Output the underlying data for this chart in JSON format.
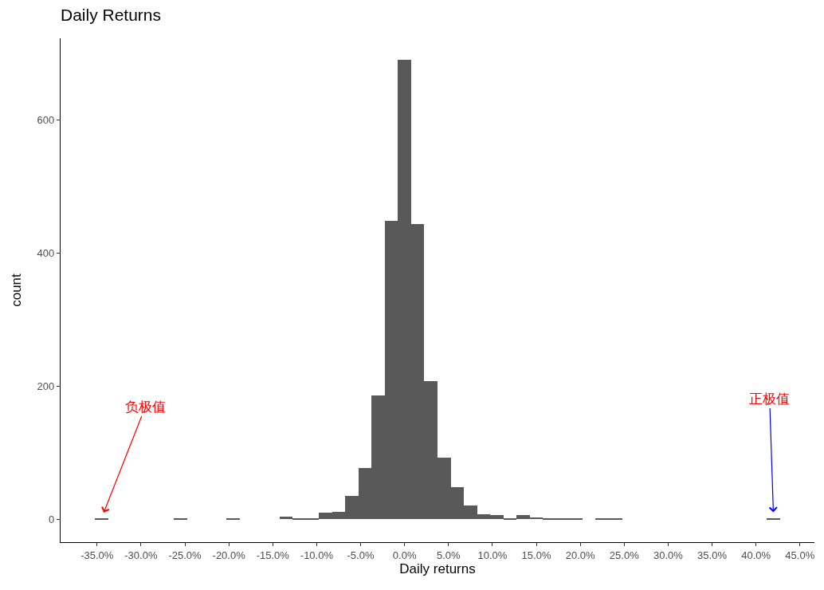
{
  "chart_data": {
    "type": "histogram",
    "title": "Daily Returns",
    "xlabel": "Daily returns",
    "ylabel": "count",
    "color": "#595959",
    "bins": [
      -35.25,
      -33.75,
      -32.25,
      -30.75,
      -29.25,
      -27.75,
      -26.25,
      -24.75,
      -23.25,
      -21.75,
      -20.25,
      -18.75,
      -17.25,
      -15.75,
      -14.25,
      -12.75,
      -11.25,
      -9.75,
      -8.25,
      -6.75,
      -5.25,
      -3.75,
      -2.25,
      -0.75,
      0.75,
      2.25,
      3.75,
      5.25,
      6.75,
      8.25,
      9.75,
      11.25,
      12.75,
      14.25,
      15.75,
      17.25,
      18.75,
      20.25,
      21.75,
      23.25,
      24.75,
      26.25,
      27.75,
      29.25,
      30.75,
      32.25,
      33.75,
      35.25,
      36.75,
      38.25,
      39.75,
      41.25,
      42.75
    ],
    "values": [
      1,
      0,
      0,
      0,
      0,
      0,
      1,
      0,
      0,
      0,
      1,
      0,
      0,
      0,
      4,
      1,
      2,
      10,
      11,
      35,
      77,
      186,
      448,
      690,
      443,
      208,
      92,
      48,
      21,
      7,
      6,
      1,
      6,
      3,
      1,
      2,
      1,
      0,
      1,
      1,
      0,
      0,
      0,
      0,
      0,
      0,
      0,
      0,
      0,
      0,
      0,
      1
    ],
    "xlim": [
      -39.15,
      46.65
    ],
    "xticks": [
      {
        "value": -35,
        "label": "-35.0%"
      },
      {
        "value": -30,
        "label": "-30.0%"
      },
      {
        "value": -25,
        "label": "-25.0%"
      },
      {
        "value": -20,
        "label": "-20.0%"
      },
      {
        "value": -15,
        "label": "-15.0%"
      },
      {
        "value": -10,
        "label": "-10.0%"
      },
      {
        "value": -5,
        "label": "-5.0%"
      },
      {
        "value": 0,
        "label": "0.0%"
      },
      {
        "value": 5,
        "label": "5.0%"
      },
      {
        "value": 10,
        "label": "10.0%"
      },
      {
        "value": 15,
        "label": "15.0%"
      },
      {
        "value": 20,
        "label": "20.0%"
      },
      {
        "value": 25,
        "label": "25.0%"
      },
      {
        "value": 30,
        "label": "30.0%"
      },
      {
        "value": 35,
        "label": "35.0%"
      },
      {
        "value": 40,
        "label": "40.0%"
      },
      {
        "value": 45,
        "label": "45.0%"
      }
    ],
    "ylim": [
      -34.4,
      722.4
    ],
    "yticks": [
      0,
      200,
      400,
      600
    ],
    "annotations": [
      {
        "text": "负极值",
        "x": -34.5,
        "y": 1
      },
      {
        "text": "正极值",
        "x": 42,
        "y": 1
      }
    ]
  }
}
